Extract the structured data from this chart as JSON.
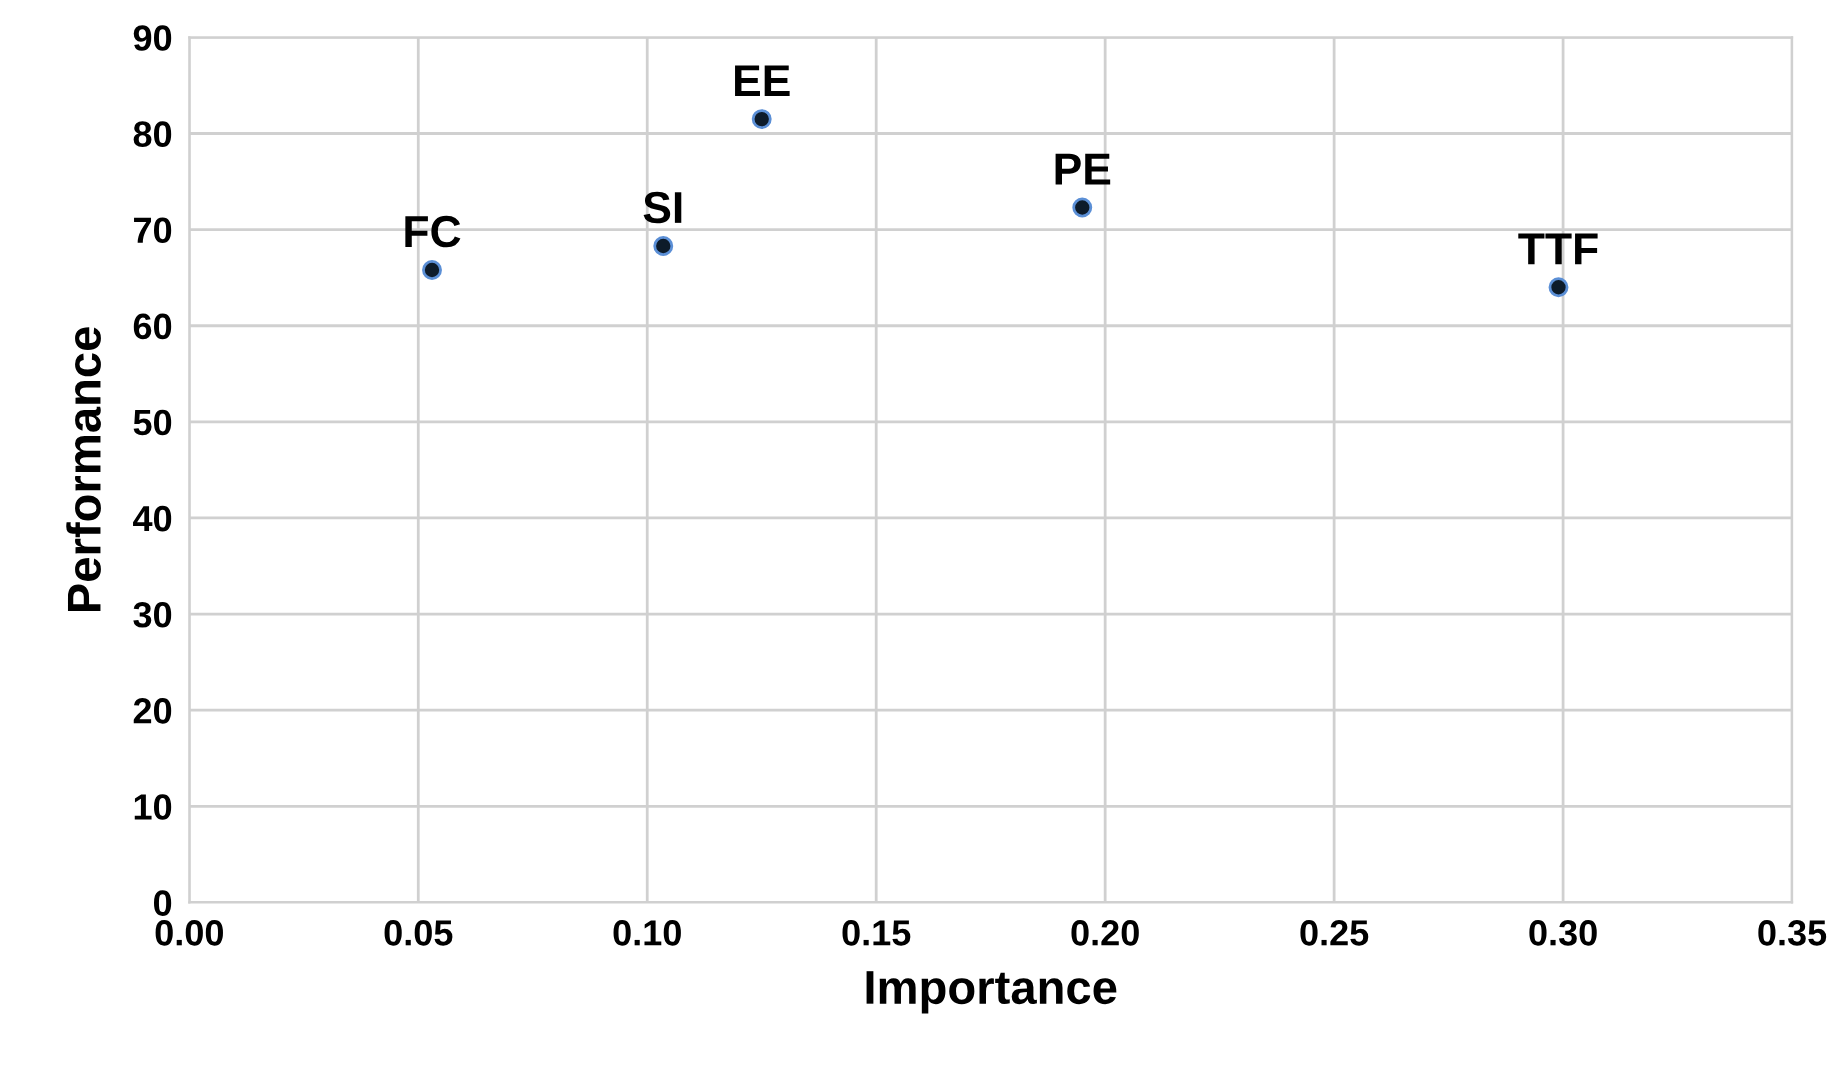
{
  "chart_data": {
    "type": "scatter",
    "xlabel": "Importance",
    "ylabel": "Performance",
    "x": [
      0.053,
      0.1035,
      0.125,
      0.195,
      0.299
    ],
    "values": [
      65.8,
      68.3,
      81.5,
      72.3,
      64.0
    ],
    "color": "#0d1b2a",
    "annotations": [
      {
        "text": "FC",
        "x": 0.053,
        "y": 65.8
      },
      {
        "text": "SI",
        "x": 0.1035,
        "y": 68.3
      },
      {
        "text": "EE",
        "x": 0.125,
        "y": 81.5
      },
      {
        "text": "PE",
        "x": 0.195,
        "y": 72.3
      },
      {
        "text": "TTF",
        "x": 0.299,
        "y": 64.0
      }
    ],
    "xlim": [
      0,
      0.35
    ],
    "xticks": [
      {
        "value": 0,
        "label": "0.00"
      },
      {
        "value": 0.05,
        "label": "0.05"
      },
      {
        "value": 0.1,
        "label": "0.10"
      },
      {
        "value": 0.15,
        "label": "0.15"
      },
      {
        "value": 0.2,
        "label": "0.20"
      },
      {
        "value": 0.25,
        "label": "0.25"
      },
      {
        "value": 0.3,
        "label": "0.30"
      },
      {
        "value": 0.35,
        "label": "0.35"
      }
    ],
    "ylim": [
      0,
      90
    ],
    "yticks": [
      0,
      10,
      20,
      30,
      40,
      50,
      60,
      70,
      80,
      90
    ],
    "grid": true,
    "marker": "circle"
  }
}
